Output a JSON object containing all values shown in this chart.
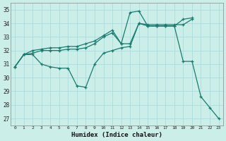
{
  "xlabel": "Humidex (Indice chaleur)",
  "bg_color": "#cceee8",
  "line_color": "#1a7a6e",
  "grid_color": "#aadddd",
  "xlim": [
    -0.5,
    23.5
  ],
  "ylim": [
    26.5,
    35.5
  ],
  "yticks": [
    27,
    28,
    29,
    30,
    31,
    32,
    33,
    34,
    35
  ],
  "xticks": [
    0,
    1,
    2,
    3,
    4,
    5,
    6,
    7,
    8,
    9,
    10,
    11,
    12,
    13,
    14,
    15,
    16,
    17,
    18,
    19,
    20,
    21,
    22,
    23
  ],
  "line1_x": [
    0,
    1,
    2,
    3,
    4,
    5,
    6,
    7,
    8,
    9,
    10,
    11,
    12,
    13,
    14,
    15,
    16,
    17,
    18,
    19,
    20,
    21,
    22,
    23
  ],
  "line1_y": [
    30.8,
    31.7,
    31.7,
    31.0,
    30.8,
    30.7,
    30.7,
    29.4,
    29.3,
    31.0,
    31.8,
    32.0,
    32.2,
    32.3,
    34.0,
    33.8,
    33.8,
    33.8,
    33.8,
    31.2,
    31.2,
    28.6,
    27.8,
    27.0
  ],
  "line2_x": [
    0,
    1,
    2,
    3,
    4,
    5,
    6,
    7,
    8,
    9,
    10,
    11,
    12,
    13,
    14,
    15,
    16,
    17,
    18,
    19,
    20
  ],
  "line2_y": [
    30.8,
    31.7,
    31.8,
    32.0,
    32.0,
    32.0,
    32.1,
    32.1,
    32.2,
    32.5,
    33.0,
    33.3,
    32.5,
    34.8,
    34.9,
    33.8,
    33.8,
    33.8,
    33.8,
    34.3,
    34.4
  ],
  "line3_x": [
    0,
    1,
    2,
    3,
    4,
    5,
    6,
    7,
    8,
    9,
    10,
    11,
    12,
    13,
    14,
    15,
    16,
    17,
    18,
    19,
    20
  ],
  "line3_y": [
    30.8,
    31.7,
    32.0,
    32.1,
    32.2,
    32.2,
    32.3,
    32.3,
    32.5,
    32.7,
    33.1,
    33.5,
    32.5,
    32.5,
    34.0,
    33.9,
    33.9,
    33.9,
    33.9,
    33.9,
    34.3
  ]
}
